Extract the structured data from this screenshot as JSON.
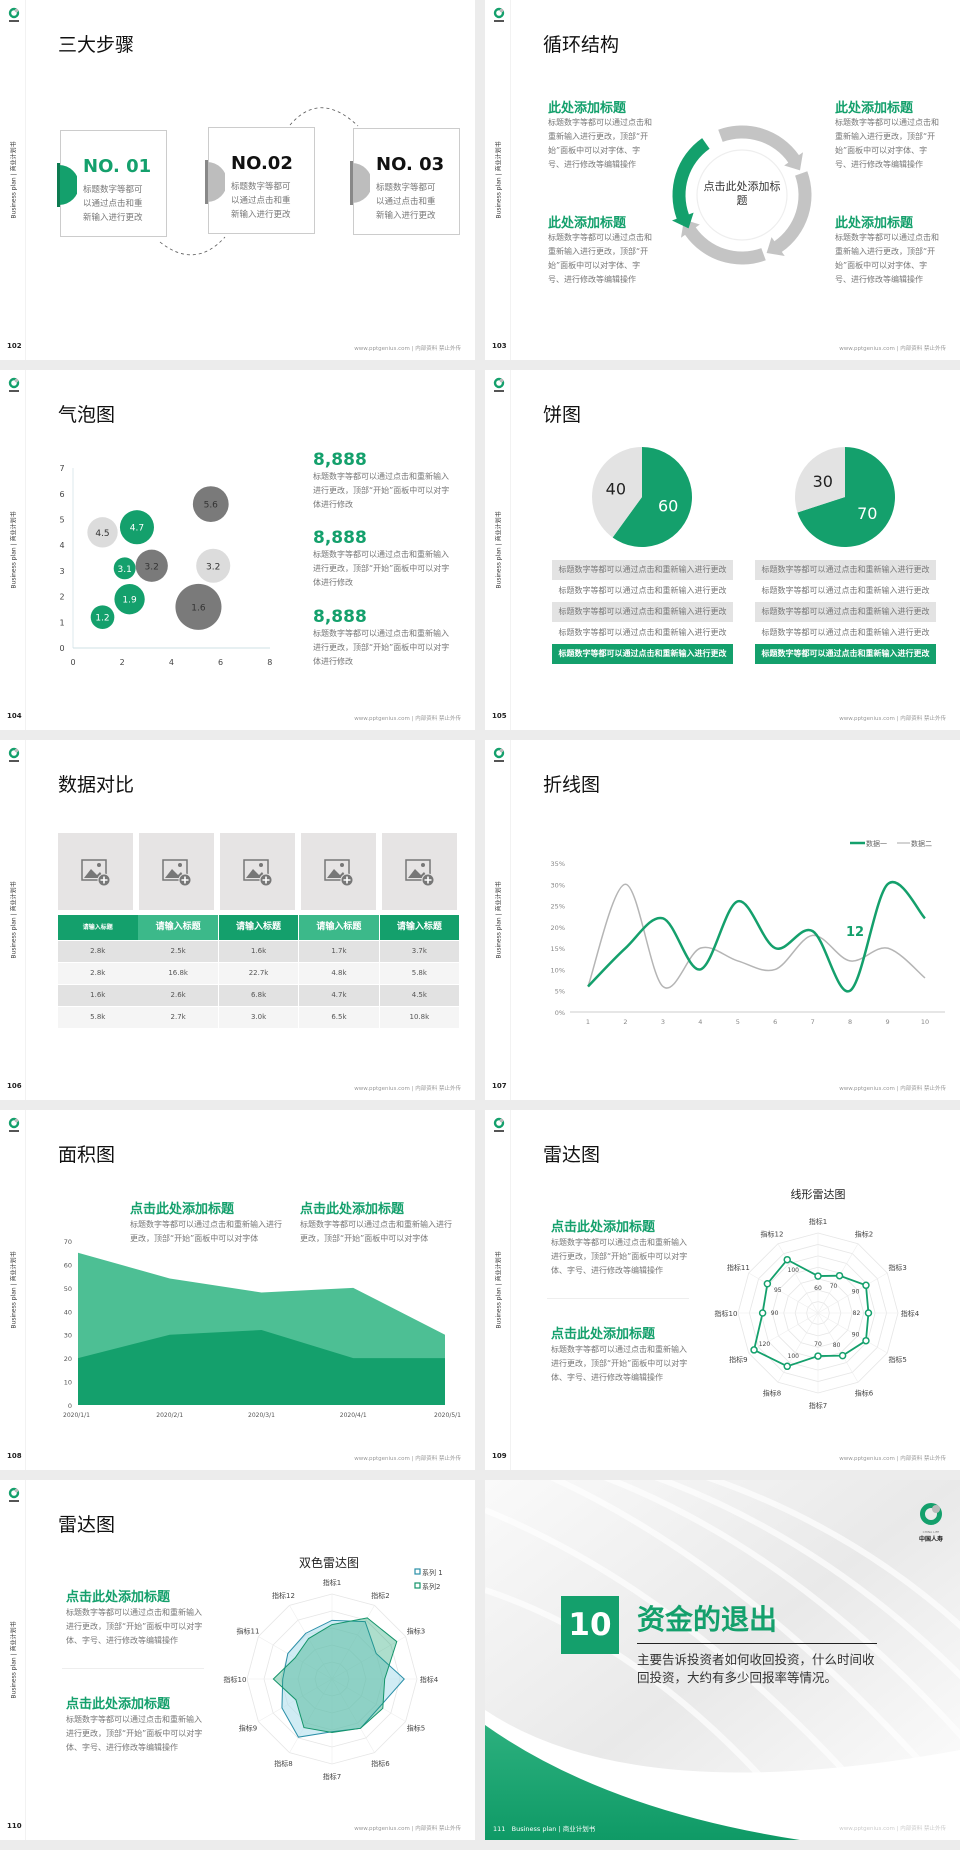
{
  "common": {
    "side_label": "Business plan | 商业计划书",
    "footer": "www.pptgenius.com | 内部资料 禁止外传",
    "logo_text": "中国人寿",
    "logo_sub": "CHINA LIFE"
  },
  "colors": {
    "green": "#14a06c",
    "green_light": "#4dbf94",
    "gray_light": "#dcdcdc",
    "gray_dark": "#7a7a7a",
    "dark": "#3a3a3a"
  },
  "s102": {
    "page": "102",
    "title": "三大步骤",
    "steps": [
      {
        "no": "NO. 01",
        "text": "标题数字等都可以通过点击和重新输入进行更改",
        "active": true
      },
      {
        "no": "NO.02",
        "text": "标题数字等都可以通过点击和重新输入进行更改",
        "active": false
      },
      {
        "no": "NO. 03",
        "text": "标题数字等都可以通过点击和重新输入进行更改",
        "active": false
      }
    ]
  },
  "s103": {
    "page": "103",
    "title": "循环结构",
    "center": "点击此处添加标题",
    "blocks": [
      {
        "heading": "此处添加标题",
        "text": "标题数字等都可以通过点击和重新输入进行更改，顶部“开始”面板中可以对字体、字号、进行修改等编辑操作"
      },
      {
        "heading": "此处添加标题",
        "text": "标题数字等都可以通过点击和重新输入进行更改，顶部“开始”面板中可以对字体、字号、进行修改等编辑操作"
      },
      {
        "heading": "此处添加标题",
        "text": "标题数字等都可以通过点击和重新输入进行更改，顶部“开始”面板中可以对字体、字号、进行修改等编辑操作"
      },
      {
        "heading": "此处添加标题",
        "text": "标题数字等都可以通过点击和重新输入进行更改，顶部“开始”面板中可以对字体、字号、进行修改等编辑操作"
      }
    ]
  },
  "s104": {
    "page": "104",
    "title": "气泡图",
    "stats": [
      {
        "value": "8,888",
        "text": "标题数字等都可以通过点击和重新输入进行更改，顶部“开始”面板中可以对字体进行修改"
      },
      {
        "value": "8,888",
        "text": "标题数字等都可以通过点击和重新输入进行更改，顶部“开始”面板中可以对字体进行修改"
      },
      {
        "value": "8,888",
        "text": "标题数字等都可以通过点击和重新输入进行更改，顶部“开始”面板中可以对字体进行修改"
      }
    ]
  },
  "s105": {
    "page": "105",
    "title": "饼图",
    "rows_left": [
      "标题数字等都可以通过点击和重新输入进行更改",
      "标题数字等都可以通过点击和重新输入进行更改",
      "标题数字等都可以通过点击和重新输入进行更改",
      "标题数字等都可以通过点击和重新输入进行更改",
      "标题数字等都可以通过点击和重新输入进行更改"
    ],
    "rows_right": [
      "标题数字等都可以通过点击和重新输入进行更改",
      "标题数字等都可以通过点击和重新输入进行更改",
      "标题数字等都可以通过点击和重新输入进行更改",
      "标题数字等都可以通过点击和重新输入进行更改",
      "标题数字等都可以通过点击和重新输入进行更改"
    ]
  },
  "s106": {
    "page": "106",
    "title": "数据对比",
    "headers": [
      "请输入标题",
      "请输入标题",
      "请输入标题",
      "请输入标题",
      "请输入标题"
    ],
    "rows": [
      [
        "2.8k",
        "2.5k",
        "1.6k",
        "1.7k",
        "3.7k"
      ],
      [
        "2.8k",
        "16.8k",
        "22.7k",
        "4.8k",
        "5.8k"
      ],
      [
        "1.6k",
        "2.6k",
        "6.8k",
        "4.7k",
        "4.5k"
      ],
      [
        "5.8k",
        "2.7k",
        "3.0k",
        "6.5k",
        "10.8k"
      ]
    ]
  },
  "s107": {
    "page": "107",
    "title": "折线图",
    "annotation": "12"
  },
  "s108": {
    "page": "108",
    "title": "面积图",
    "blocks": [
      {
        "heading": "点击此处添加标题",
        "text": "标题数字等都可以通过点击和重新输入进行更改，顶部“开始”面板中可以对字体"
      },
      {
        "heading": "点击此处添加标题",
        "text": "标题数字等都可以通过点击和重新输入进行更改，顶部“开始”面板中可以对字体"
      }
    ]
  },
  "s109": {
    "page": "109",
    "title": "雷达图",
    "blocks": [
      {
        "heading": "点击此处添加标题",
        "text": "标题数字等都可以通过点击和重新输入进行更改，顶部“开始”面板中可以对字体、字号、进行修改等编辑操作"
      },
      {
        "heading": "点击此处添加标题",
        "text": "标题数字等都可以通过点击和重新输入进行更改，顶部“开始”面板中可以对字体、字号、进行修改等编辑操作"
      }
    ]
  },
  "s110": {
    "page": "110",
    "title": "雷达图",
    "blocks": [
      {
        "heading": "点击此处添加标题",
        "text": "标题数字等都可以通过点击和重新输入进行更改，顶部“开始”面板中可以对字体、字号、进行修改等编辑操作"
      },
      {
        "heading": "点击此处添加标题",
        "text": "标题数字等都可以通过点击和重新输入进行更改，顶部“开始”面板中可以对字体、字号、进行修改等编辑操作"
      }
    ]
  },
  "s111": {
    "page": "111",
    "number": "10",
    "title": "资金的退出",
    "text": "主要告诉投资者如何收回投资，什么时间收回投资，大约有多少回报率等情况。",
    "footer_left": "Business plan | 商业计划书"
  },
  "chart_data": [
    {
      "type": "scatter",
      "subtype": "bubble",
      "xlim": [
        0,
        8
      ],
      "ylim": [
        0,
        7
      ],
      "xticks": [
        0,
        2,
        4,
        6,
        8
      ],
      "yticks": [
        0,
        1,
        2,
        3,
        4,
        5,
        6,
        7
      ],
      "points": [
        {
          "x": 1.2,
          "y": 1.2,
          "size": 1.4,
          "label": "1.2",
          "color": "green"
        },
        {
          "x": 2.3,
          "y": 1.9,
          "size": 2.3,
          "label": "1.9",
          "color": "green"
        },
        {
          "x": 2.1,
          "y": 3.1,
          "size": 1.2,
          "label": "3.1",
          "color": "green"
        },
        {
          "x": 3.2,
          "y": 3.2,
          "size": 2.6,
          "label": "3.2",
          "color": "gray_dark"
        },
        {
          "x": 1.2,
          "y": 4.5,
          "size": 2.3,
          "label": "4.5",
          "color": "gray_light"
        },
        {
          "x": 2.6,
          "y": 4.7,
          "size": 2.9,
          "label": "4.7",
          "color": "green"
        },
        {
          "x": 5.6,
          "y": 5.6,
          "size": 3.2,
          "label": "5.6",
          "color": "gray_dark"
        },
        {
          "x": 5.7,
          "y": 3.2,
          "size": 2.9,
          "label": "3.2",
          "color": "gray_light"
        },
        {
          "x": 5.1,
          "y": 1.6,
          "size": 5.3,
          "label": "1.6",
          "color": "gray_dark"
        }
      ]
    },
    {
      "type": "pie",
      "values": [
        60,
        40
      ],
      "labels": [
        "60",
        "40"
      ]
    },
    {
      "type": "pie",
      "values": [
        70,
        30
      ],
      "labels": [
        "70",
        "30"
      ]
    },
    {
      "type": "line",
      "smooth": true,
      "categories": [
        "1",
        "2",
        "3",
        "4",
        "5",
        "6",
        "7",
        "8",
        "9",
        "10"
      ],
      "yticks": [
        "0%",
        "5%",
        "10%",
        "15%",
        "20%",
        "25%",
        "30%",
        "35%"
      ],
      "ylim": [
        0,
        35
      ],
      "legend": "top-right",
      "series": [
        {
          "name": "数据一",
          "values": [
            6,
            15,
            22,
            10,
            26,
            15,
            19,
            5,
            30,
            22
          ]
        },
        {
          "name": "数据二",
          "values": [
            6,
            30,
            6,
            15,
            12,
            10,
            18,
            12,
            15,
            8
          ]
        }
      ]
    },
    {
      "type": "area",
      "categories": [
        "2020/1/1",
        "2020/2/1",
        "2020/3/1",
        "2020/4/1",
        "2020/5/1"
      ],
      "yticks": [
        "0",
        "10",
        "20",
        "30",
        "40",
        "50",
        "60",
        "70"
      ],
      "ylim": [
        0,
        70
      ],
      "series": [
        {
          "values": [
            65,
            54,
            48,
            50,
            30
          ]
        },
        {
          "values": [
            20,
            30,
            32,
            20,
            20
          ]
        }
      ]
    },
    {
      "type": "radar",
      "title": "线形雷达图",
      "rmax": 130,
      "categories": [
        "指标1",
        "指标2",
        "指标3",
        "指标4",
        "指标5",
        "指标6",
        "指标7",
        "指标8",
        "指标9",
        "指标10",
        "指标11",
        "指标12"
      ],
      "values": [
        60,
        70,
        90,
        82,
        90,
        80,
        70,
        100,
        120,
        90,
        95,
        100
      ]
    },
    {
      "type": "radar",
      "title": "双色雷达图",
      "rmax": 100,
      "legend": "top-right",
      "categories": [
        "指标1",
        "指标2",
        "指标3",
        "指标4",
        "指标5",
        "指标6",
        "指标7",
        "指标8",
        "指标9",
        "指标10",
        "指标11",
        "指标12"
      ],
      "series": [
        {
          "name": "系列 1",
          "values": [
            69,
            78,
            60,
            85,
            65,
            67,
            62,
            79,
            68,
            58,
            60,
            62
          ]
        },
        {
          "name": "系列2",
          "values": [
            64,
            83,
            88,
            62,
            69,
            67,
            63,
            66,
            49,
            69,
            50,
            55
          ]
        }
      ]
    }
  ]
}
